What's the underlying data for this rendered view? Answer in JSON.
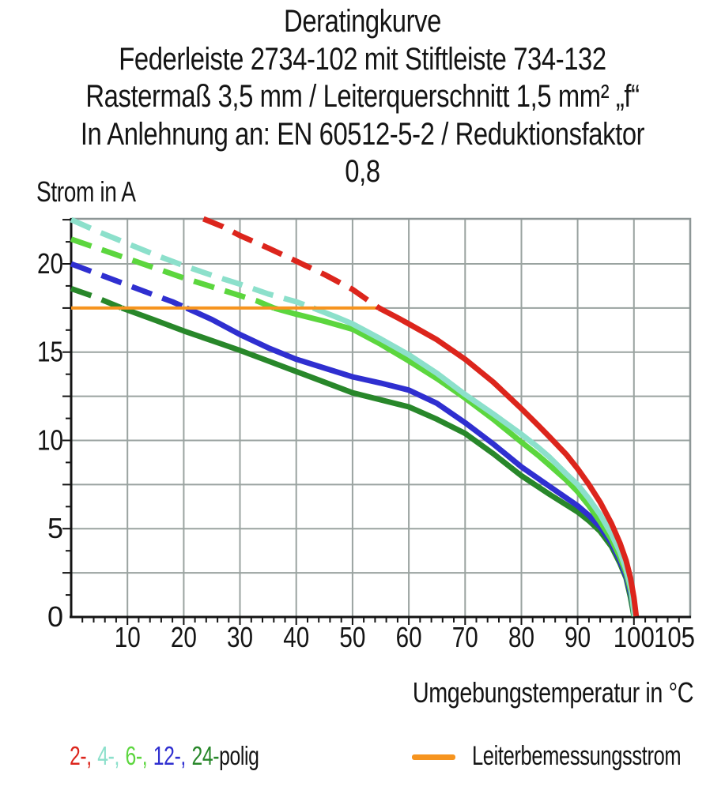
{
  "title": {
    "lines": [
      "Deratingkurve",
      "Federleiste 2734-102 mit Stiftleiste 734-132",
      "Rastermaß 3,5 mm / Leiterquerschnitt 1,5 mm² „f“",
      "In Anlehnung an: EN 60512-5-2 / Reduktionsfaktor 0,8"
    ]
  },
  "axis": {
    "y_label": "Strom in A",
    "x_label": "Umgebungstemperatur in °C"
  },
  "legend": {
    "poles": [
      {
        "label": "2-,",
        "color": "#dc251c"
      },
      {
        "label": "4-,",
        "color": "#8ce0cb"
      },
      {
        "label": "6-,",
        "color": "#5cd63e"
      },
      {
        "label": "12-,",
        "color": "#2f2fd0"
      },
      {
        "label": "24-",
        "color": "#28872a"
      }
    ],
    "suffix": "polig",
    "rated_label": "Leiterbemessungsstrom",
    "rated_color": "#f6941f"
  },
  "colors": {
    "grid": "#9aa3a0",
    "frame": "#8d9696",
    "axis": "#141414",
    "text": "#141414",
    "background": "#ffffff"
  },
  "chart_data": {
    "type": "line",
    "title": "Deratingkurve",
    "xlabel": "Umgebungstemperatur in °C",
    "ylabel": "Strom in A",
    "xlim": [
      0,
      110
    ],
    "ylim": [
      0,
      22.55
    ],
    "x_ticks": [
      10,
      20,
      30,
      40,
      50,
      60,
      70,
      80,
      90,
      100,
      105
    ],
    "y_ticks": [
      0,
      5,
      10,
      15,
      20
    ],
    "x_grid": [
      10,
      20,
      30,
      40,
      50,
      60,
      70,
      80,
      90,
      100
    ],
    "y_grid": [
      2.5,
      5,
      7.5,
      10,
      12.5,
      15,
      17.5,
      20
    ],
    "x_minor_step": 2,
    "y_minor_step": 1.25,
    "grid": true,
    "legend_position": "bottom",
    "rated_current_A": 17.5,
    "series": [
      {
        "name": "2-polig",
        "color": "#dc251c",
        "width": 7,
        "segments": [
          {
            "style": "dashed",
            "points": [
              [
                23.5,
                22.55
              ],
              [
                27,
                22.1
              ],
              [
                30,
                21.6
              ],
              [
                35,
                20.9
              ],
              [
                40,
                20.15
              ],
              [
                45,
                19.4
              ],
              [
                50,
                18.55
              ],
              [
                54.7,
                17.5
              ]
            ]
          },
          {
            "style": "solid",
            "points": [
              [
                54.7,
                17.5
              ],
              [
                58,
                16.95
              ],
              [
                60,
                16.6
              ],
              [
                65,
                15.7
              ],
              [
                70,
                14.6
              ],
              [
                75,
                13.3
              ],
              [
                80,
                11.8
              ],
              [
                83,
                10.85
              ],
              [
                85,
                10.2
              ],
              [
                88,
                9.2
              ],
              [
                90,
                8.4
              ],
              [
                92,
                7.5
              ],
              [
                94,
                6.5
              ],
              [
                96,
                5.3
              ],
              [
                97.5,
                4.2
              ],
              [
                98.6,
                3.2
              ],
              [
                99.4,
                2.2
              ],
              [
                100,
                1.1
              ],
              [
                100.4,
                0.05
              ]
            ]
          }
        ]
      },
      {
        "name": "4-polig",
        "color": "#8ce0cb",
        "width": 7,
        "segments": [
          {
            "style": "dashed",
            "points": [
              [
                0,
                22.5
              ],
              [
                5,
                21.8
              ],
              [
                10,
                21.15
              ],
              [
                15,
                20.5
              ],
              [
                20,
                19.9
              ],
              [
                25,
                19.35
              ],
              [
                30,
                18.85
              ],
              [
                35,
                18.3
              ],
              [
                40,
                17.85
              ],
              [
                43,
                17.5
              ]
            ]
          },
          {
            "style": "solid",
            "points": [
              [
                43,
                17.5
              ],
              [
                47,
                17.0
              ],
              [
                50,
                16.6
              ],
              [
                55,
                15.75
              ],
              [
                60,
                14.85
              ],
              [
                65,
                13.8
              ],
              [
                70,
                12.6
              ],
              [
                75,
                11.5
              ],
              [
                80,
                10.35
              ],
              [
                83,
                9.6
              ],
              [
                85,
                9.05
              ],
              [
                88,
                8.1
              ],
              [
                90,
                7.5
              ],
              [
                92,
                6.7
              ],
              [
                94,
                5.8
              ],
              [
                96,
                4.7
              ],
              [
                97.5,
                3.7
              ],
              [
                98.6,
                2.7
              ],
              [
                99.5,
                1.6
              ],
              [
                100.1,
                0.05
              ]
            ]
          }
        ]
      },
      {
        "name": "6-polig",
        "color": "#5cd63e",
        "width": 7,
        "segments": [
          {
            "style": "dashed",
            "points": [
              [
                0,
                21.4
              ],
              [
                5,
                20.85
              ],
              [
                10,
                20.3
              ],
              [
                15,
                19.75
              ],
              [
                20,
                19.2
              ],
              [
                25,
                18.7
              ],
              [
                30,
                18.2
              ],
              [
                33,
                17.9
              ],
              [
                36,
                17.5
              ]
            ]
          },
          {
            "style": "solid",
            "points": [
              [
                36,
                17.5
              ],
              [
                40,
                17.15
              ],
              [
                45,
                16.75
              ],
              [
                50,
                16.3
              ],
              [
                55,
                15.45
              ],
              [
                60,
                14.5
              ],
              [
                65,
                13.5
              ],
              [
                70,
                12.4
              ],
              [
                75,
                11.2
              ],
              [
                80,
                9.9
              ],
              [
                83,
                9.15
              ],
              [
                85,
                8.6
              ],
              [
                88,
                7.75
              ],
              [
                90,
                7.1
              ],
              [
                92,
                6.3
              ],
              [
                94,
                5.4
              ],
              [
                96,
                4.4
              ],
              [
                97.5,
                3.4
              ],
              [
                98.6,
                2.5
              ],
              [
                99.5,
                1.4
              ],
              [
                100.05,
                0.05
              ]
            ]
          }
        ]
      },
      {
        "name": "12-polig",
        "color": "#2f2fd0",
        "width": 7,
        "segments": [
          {
            "style": "dashed",
            "points": [
              [
                0,
                20.0
              ],
              [
                5,
                19.4
              ],
              [
                10,
                18.8
              ],
              [
                15,
                18.2
              ],
              [
                18,
                17.85
              ],
              [
                20.5,
                17.5
              ]
            ]
          },
          {
            "style": "solid",
            "points": [
              [
                20.5,
                17.5
              ],
              [
                25,
                16.85
              ],
              [
                30,
                16.0
              ],
              [
                35,
                15.25
              ],
              [
                40,
                14.6
              ],
              [
                45,
                14.1
              ],
              [
                50,
                13.6
              ],
              [
                55,
                13.25
              ],
              [
                60,
                12.85
              ],
              [
                65,
                12.1
              ],
              [
                70,
                11.0
              ],
              [
                75,
                9.8
              ],
              [
                80,
                8.5
              ],
              [
                85,
                7.4
              ],
              [
                90,
                6.3
              ],
              [
                92,
                5.75
              ],
              [
                94,
                5.1
              ],
              [
                96,
                4.2
              ],
              [
                97.5,
                3.2
              ],
              [
                98.6,
                2.3
              ],
              [
                99.5,
                1.2
              ],
              [
                100.05,
                0.05
              ]
            ]
          }
        ]
      },
      {
        "name": "24-polig",
        "color": "#28872a",
        "width": 7,
        "segments": [
          {
            "style": "dashed",
            "points": [
              [
                0,
                18.6
              ],
              [
                4,
                18.15
              ],
              [
                9,
                17.5
              ]
            ]
          },
          {
            "style": "solid",
            "points": [
              [
                9,
                17.5
              ],
              [
                15,
                16.8
              ],
              [
                20,
                16.2
              ],
              [
                25,
                15.65
              ],
              [
                30,
                15.1
              ],
              [
                35,
                14.5
              ],
              [
                40,
                13.9
              ],
              [
                45,
                13.3
              ],
              [
                50,
                12.7
              ],
              [
                55,
                12.3
              ],
              [
                60,
                11.9
              ],
              [
                65,
                11.2
              ],
              [
                70,
                10.4
              ],
              [
                75,
                9.25
              ],
              [
                80,
                8.0
              ],
              [
                85,
                6.95
              ],
              [
                90,
                5.95
              ],
              [
                92,
                5.45
              ],
              [
                94,
                4.85
              ],
              [
                96,
                4.0
              ],
              [
                97.5,
                3.05
              ],
              [
                98.6,
                2.2
              ],
              [
                99.4,
                1.1
              ],
              [
                100,
                0.05
              ]
            ]
          }
        ]
      },
      {
        "name": "Leiterbemessungsstrom",
        "color": "#f6941f",
        "width": 4,
        "segments": [
          {
            "style": "solid",
            "points": [
              [
                0,
                17.5
              ],
              [
                54.7,
                17.5
              ]
            ]
          }
        ]
      }
    ]
  }
}
